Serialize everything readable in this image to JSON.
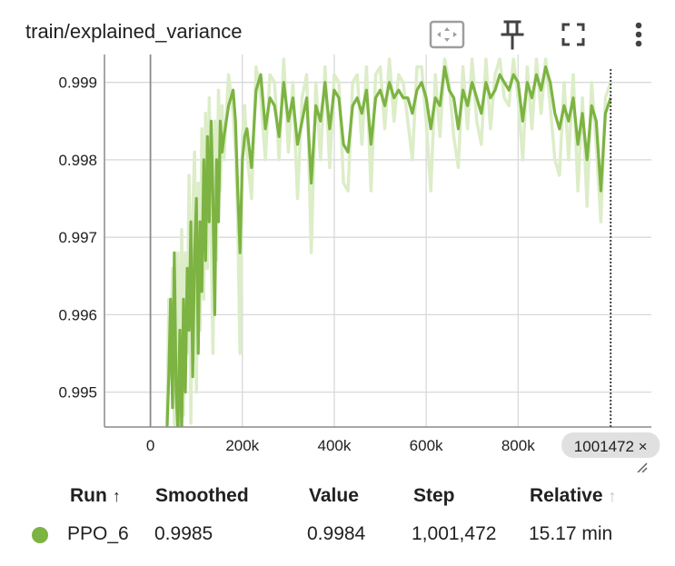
{
  "header": {
    "title": "train/explained_variance",
    "icons": [
      "fit-domain-icon",
      "pin-icon",
      "fullscreen-icon",
      "more-vert-icon"
    ]
  },
  "colors": {
    "series": "#7cb342",
    "series_raw": "#dcedc8",
    "grid": "#d9d9d9",
    "axis": "#8a8a8a",
    "hover_line": "#424242"
  },
  "chart_data": {
    "type": "line",
    "title": "train/explained_variance",
    "xlim": [
      -100000,
      1090000
    ],
    "ylim": [
      0.99455,
      0.99936
    ],
    "x_ticks": [
      0,
      200000,
      400000,
      600000,
      800000
    ],
    "x_tick_labels": [
      "0",
      "200k",
      "400k",
      "600k",
      "800k"
    ],
    "y_ticks": [
      0.995,
      0.996,
      0.997,
      0.998,
      0.999
    ],
    "y_tick_labels": [
      "0.995",
      "0.996",
      "0.997",
      "0.998",
      "0.999"
    ],
    "grid": true,
    "hover_step": 1001472,
    "hover_label": "1001472 ×",
    "series": [
      {
        "name": "PPO_6",
        "x": [
          36000,
          40000,
          44000,
          48000,
          52000,
          56000,
          60000,
          64000,
          68000,
          72000,
          76000,
          80000,
          84000,
          88000,
          92000,
          96000,
          100000,
          104000,
          108000,
          112000,
          116000,
          120000,
          124000,
          128000,
          132000,
          136000,
          140000,
          144000,
          148000,
          152000,
          156000,
          160000,
          170000,
          180000,
          185000,
          190000,
          195000,
          200000,
          205000,
          210000,
          220000,
          230000,
          240000,
          250000,
          260000,
          270000,
          280000,
          290000,
          300000,
          310000,
          320000,
          330000,
          340000,
          350000,
          360000,
          370000,
          380000,
          390000,
          400000,
          410000,
          420000,
          430000,
          440000,
          450000,
          460000,
          470000,
          480000,
          490000,
          500000,
          510000,
          520000,
          530000,
          540000,
          550000,
          560000,
          570000,
          580000,
          590000,
          600000,
          610000,
          620000,
          630000,
          640000,
          650000,
          660000,
          670000,
          680000,
          690000,
          700000,
          710000,
          720000,
          730000,
          740000,
          750000,
          760000,
          770000,
          780000,
          790000,
          800000,
          810000,
          820000,
          830000,
          840000,
          850000,
          860000,
          870000,
          880000,
          890000,
          900000,
          910000,
          920000,
          930000,
          940000,
          950000,
          960000,
          970000,
          980000,
          990000,
          1001472
        ],
        "smoothed": [
          0.9945,
          0.9952,
          0.9962,
          0.9948,
          0.9968,
          0.995,
          0.9945,
          0.9958,
          0.9945,
          0.9962,
          0.995,
          0.9966,
          0.9958,
          0.9972,
          0.9952,
          0.9968,
          0.9975,
          0.9955,
          0.9972,
          0.9963,
          0.998,
          0.9967,
          0.9983,
          0.9972,
          0.9985,
          0.9975,
          0.996,
          0.998,
          0.9972,
          0.9985,
          0.9981,
          0.9983,
          0.9987,
          0.9989,
          0.9985,
          0.9976,
          0.9968,
          0.998,
          0.9983,
          0.9984,
          0.9979,
          0.9989,
          0.9991,
          0.9984,
          0.9988,
          0.9987,
          0.9983,
          0.999,
          0.9985,
          0.9988,
          0.9982,
          0.9985,
          0.9988,
          0.9977,
          0.9987,
          0.9985,
          0.999,
          0.9984,
          0.9989,
          0.9988,
          0.9982,
          0.9981,
          0.9987,
          0.9988,
          0.9986,
          0.9989,
          0.9982,
          0.9988,
          0.9989,
          0.9987,
          0.999,
          0.9988,
          0.9989,
          0.9988,
          0.9988,
          0.9986,
          0.9989,
          0.999,
          0.9988,
          0.9984,
          0.9988,
          0.9987,
          0.9992,
          0.9989,
          0.9988,
          0.9984,
          0.9989,
          0.9987,
          0.999,
          0.9988,
          0.9986,
          0.999,
          0.9988,
          0.9989,
          0.9991,
          0.999,
          0.9989,
          0.9991,
          0.999,
          0.9985,
          0.999,
          0.9988,
          0.9991,
          0.9989,
          0.9992,
          0.999,
          0.9986,
          0.9984,
          0.9987,
          0.9985,
          0.9988,
          0.9982,
          0.9986,
          0.998,
          0.9987,
          0.9985,
          0.9976,
          0.9986,
          0.9988,
          0.9987,
          0.9985
        ],
        "raw": [
          0.9946,
          0.9962,
          0.9952,
          0.9966,
          0.9946,
          0.9945,
          0.9968,
          0.9945,
          0.9971,
          0.9947,
          0.9968,
          0.9955,
          0.9978,
          0.9946,
          0.9973,
          0.9981,
          0.995,
          0.9977,
          0.9958,
          0.9984,
          0.9962,
          0.9986,
          0.9966,
          0.9988,
          0.997,
          0.9955,
          0.9985,
          0.9967,
          0.9989,
          0.9976,
          0.9987,
          0.998,
          0.9991,
          0.9986,
          0.9981,
          0.9972,
          0.9955,
          0.9983,
          0.9987,
          0.9981,
          0.9975,
          0.9992,
          0.9988,
          0.998,
          0.9991,
          0.999,
          0.998,
          0.9993,
          0.9981,
          0.999,
          0.9975,
          0.9988,
          0.9991,
          0.9968,
          0.999,
          0.998,
          0.9992,
          0.9979,
          0.9991,
          0.999,
          0.9977,
          0.9976,
          0.999,
          0.9991,
          0.9982,
          0.9992,
          0.9976,
          0.9991,
          0.9992,
          0.9984,
          0.9993,
          0.9985,
          0.9991,
          0.999,
          0.9985,
          0.998,
          0.9992,
          0.9992,
          0.9985,
          0.9976,
          0.9991,
          0.9983,
          0.9993,
          0.999,
          0.9983,
          0.9979,
          0.9992,
          0.9984,
          0.9993,
          0.9985,
          0.9982,
          0.9993,
          0.9984,
          0.9991,
          0.9993,
          0.9988,
          0.9987,
          0.9993,
          0.9988,
          0.998,
          0.9992,
          0.9984,
          0.9993,
          0.9986,
          0.9993,
          0.9987,
          0.998,
          0.9978,
          0.999,
          0.998,
          0.9991,
          0.9976,
          0.9988,
          0.9974,
          0.999,
          0.9982,
          0.9972,
          0.9988,
          0.999,
          0.9988,
          0.9984
        ]
      }
    ]
  },
  "table": {
    "headers": {
      "run": "Run",
      "smoothed": "Smoothed",
      "value": "Value",
      "step": "Step",
      "relative": "Relative"
    },
    "sort_arrow": "↑",
    "relative_arrow": "↑",
    "rows": [
      {
        "run": "PPO_6",
        "smoothed": "0.9985",
        "value": "0.9984",
        "step": "1,001,472",
        "relative": "15.17 min",
        "color": "#7cb342"
      }
    ]
  }
}
